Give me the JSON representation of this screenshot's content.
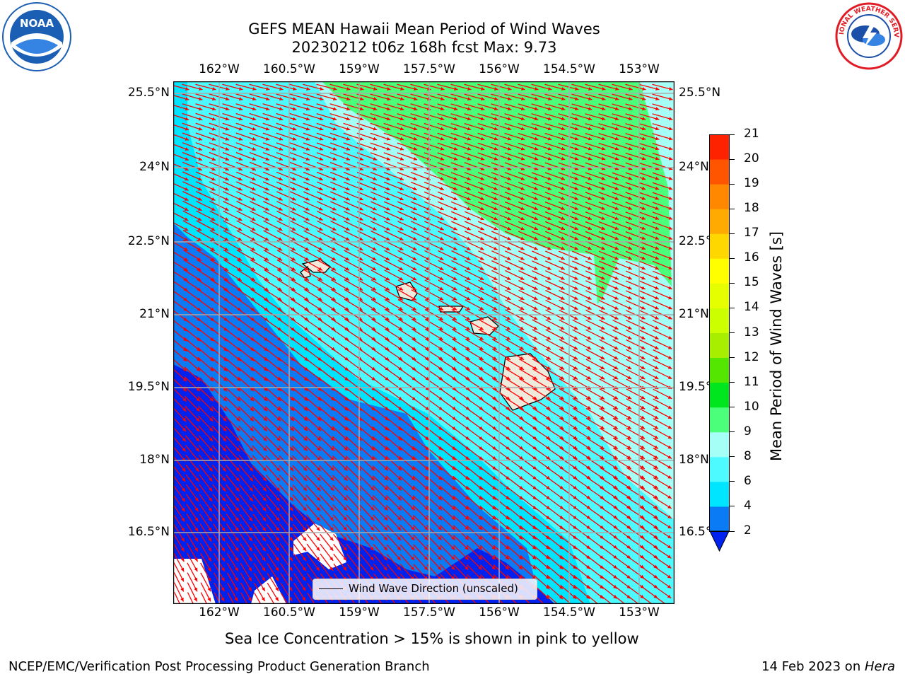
{
  "header": {
    "title_line1": "GEFS MEAN Hawaii Mean Period of Wind Waves",
    "title_line2": "20230212 t06z 168h fcst   Max: 9.73"
  },
  "logos": {
    "left": {
      "text": "NOAA",
      "icon": "noaa-logo",
      "color": "#1a5fb4"
    },
    "right": {
      "text": "NATIONAL WEATHER SERVICE",
      "icon": "nws-logo",
      "color": "#e01b24"
    }
  },
  "map": {
    "lon_ticks": [
      "162°W",
      "160.5°W",
      "159°W",
      "157.5°W",
      "156°W",
      "154.5°W",
      "153°W"
    ],
    "lat_ticks": [
      "25.5°N",
      "24°N",
      "22.5°N",
      "21°N",
      "19.5°N",
      "18°N",
      "16.5°N"
    ],
    "legend_text": "Wind Wave Direction (unscaled)",
    "arrow_color": "#ff0000",
    "grid_color": "#aaaaaa"
  },
  "colorbar": {
    "label": "Mean Period of Wind Waves [s]",
    "ticks": [
      "2",
      "4",
      "6",
      "8",
      "9",
      "10",
      "11",
      "12",
      "13",
      "14",
      "15",
      "16",
      "17",
      "18",
      "19",
      "20",
      "21"
    ],
    "colors": [
      "#0b7bf5",
      "#00e5ff",
      "#4dfaff",
      "#a6fff6",
      "#4cff7a",
      "#00e61e",
      "#54e600",
      "#a8ee00",
      "#ccff00",
      "#e6ff00",
      "#ffff00",
      "#ffd700",
      "#ffaa00",
      "#ff8800",
      "#ff5500",
      "#ff2200"
    ],
    "under_color": "#0022ee"
  },
  "notes": {
    "sea_ice": "Sea Ice Concentration > 15% is shown in pink to yellow"
  },
  "footer": {
    "left": "NCEP/EMC/Verification Post Processing Product Generation Branch",
    "right_prefix": "14 Feb 2023 on ",
    "right_host": "Hera"
  }
}
